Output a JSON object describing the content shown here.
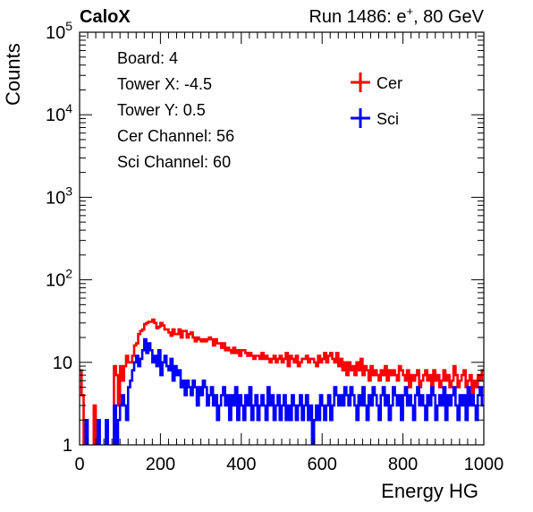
{
  "chart_data": {
    "type": "line",
    "title": "CaloX",
    "subtitle": "Run 1486: e⁺, 80 GeV",
    "xlabel": "Energy HG",
    "ylabel": "Counts",
    "xlim": [
      0,
      1000
    ],
    "ylim": [
      1,
      100000
    ],
    "yscale": "log",
    "x_ticks": [
      "0",
      "200",
      "400",
      "600",
      "800",
      "1000"
    ],
    "y_ticks": [
      {
        "value": 1,
        "base": "1",
        "exp": ""
      },
      {
        "value": 10,
        "base": "10",
        "exp": ""
      },
      {
        "value": 100,
        "base": "10",
        "exp": "2"
      },
      {
        "value": 1000,
        "base": "10",
        "exp": "3"
      },
      {
        "value": 10000,
        "base": "10",
        "exp": "4"
      },
      {
        "value": 100000,
        "base": "10",
        "exp": "5"
      }
    ],
    "info_box": [
      "Board: 4",
      "Tower X: -4.5",
      "Tower Y: 0.5",
      "Cer Channel: 56",
      "Sci Channel: 60"
    ],
    "legend_position": "top-right",
    "bin_width": 5,
    "series": [
      {
        "name": "Cer",
        "color": "#ff0000",
        "values": [
          8,
          4,
          0,
          0,
          0,
          0,
          0,
          3,
          0,
          0,
          0,
          0,
          0,
          0,
          0,
          0,
          0,
          9,
          7,
          3,
          9,
          6,
          9,
          12,
          10,
          10,
          12,
          16,
          17,
          22,
          24,
          25,
          29,
          30,
          31,
          31,
          33,
          30,
          26,
          27,
          30,
          28,
          25,
          25,
          23,
          21,
          25,
          22,
          22,
          25,
          20,
          24,
          24,
          20,
          22,
          23,
          20,
          18,
          20,
          19,
          18,
          19,
          18,
          19,
          20,
          19,
          16,
          19,
          17,
          17,
          15,
          17,
          14,
          15,
          14,
          13,
          15,
          13,
          14,
          12,
          14,
          14,
          13,
          12,
          13,
          12,
          11,
          12,
          12,
          11,
          13,
          11,
          12,
          11,
          10,
          11,
          12,
          10,
          11,
          12,
          10,
          11,
          13,
          9,
          12,
          11,
          10,
          12,
          9,
          10,
          11,
          11,
          12,
          10,
          11,
          11,
          10,
          9,
          12,
          10,
          11,
          13,
          10,
          12,
          13,
          11,
          10,
          13,
          9,
          11,
          8,
          10,
          7,
          10,
          8,
          9,
          7,
          10,
          8,
          11,
          7,
          9,
          8,
          6,
          9,
          7,
          8,
          7,
          6,
          8,
          7,
          9,
          6,
          8,
          7,
          8,
          7,
          6,
          9,
          8,
          7,
          6,
          8,
          5,
          7,
          6,
          7,
          8,
          5,
          6,
          7,
          8,
          6,
          7,
          5,
          8,
          6,
          7,
          5,
          6,
          8,
          6,
          7,
          5,
          6,
          9,
          7,
          5,
          6,
          7,
          8,
          5,
          6,
          7,
          4,
          6,
          5,
          7,
          6,
          8
        ]
      },
      {
        "name": "Sci",
        "color": "#0000ff",
        "values": [
          0,
          0,
          0,
          2,
          0,
          0,
          0,
          0,
          0,
          2,
          0,
          0,
          0,
          2,
          0,
          0,
          0,
          3,
          0,
          2,
          3,
          4,
          3,
          2,
          5,
          6,
          8,
          10,
          12,
          9,
          11,
          14,
          19,
          13,
          17,
          14,
          10,
          12,
          9,
          14,
          7,
          10,
          12,
          9,
          8,
          11,
          6,
          9,
          7,
          8,
          5,
          6,
          4,
          6,
          5,
          4,
          6,
          5,
          3,
          5,
          4,
          6,
          5,
          3,
          4,
          5,
          3,
          4,
          2,
          3,
          4,
          5,
          3,
          4,
          2,
          4,
          3,
          5,
          2,
          4,
          3,
          2,
          4,
          3,
          5,
          2,
          3,
          4,
          2,
          3,
          4,
          3,
          2,
          5,
          3,
          4,
          2,
          3,
          4,
          2,
          3,
          4,
          2,
          3,
          2,
          4,
          3,
          2,
          3,
          4,
          2,
          3,
          4,
          2,
          3,
          1,
          2,
          3,
          2,
          4,
          3,
          2,
          3,
          4,
          2,
          3,
          5,
          4,
          3,
          4,
          3,
          5,
          4,
          3,
          5,
          4,
          3,
          2,
          4,
          3,
          5,
          3,
          2,
          4,
          3,
          5,
          4,
          3,
          2,
          4,
          5,
          3,
          4,
          2,
          3,
          5,
          4,
          3,
          4,
          2,
          4,
          5,
          3,
          4,
          3,
          2,
          4,
          5,
          3,
          4,
          3,
          2,
          4,
          3,
          5,
          4,
          2,
          3,
          4,
          3,
          5,
          2,
          4,
          3,
          4,
          5,
          3,
          2,
          4,
          3,
          4,
          2,
          5,
          3,
          4,
          3,
          2,
          4,
          5,
          3
        ]
      }
    ]
  }
}
